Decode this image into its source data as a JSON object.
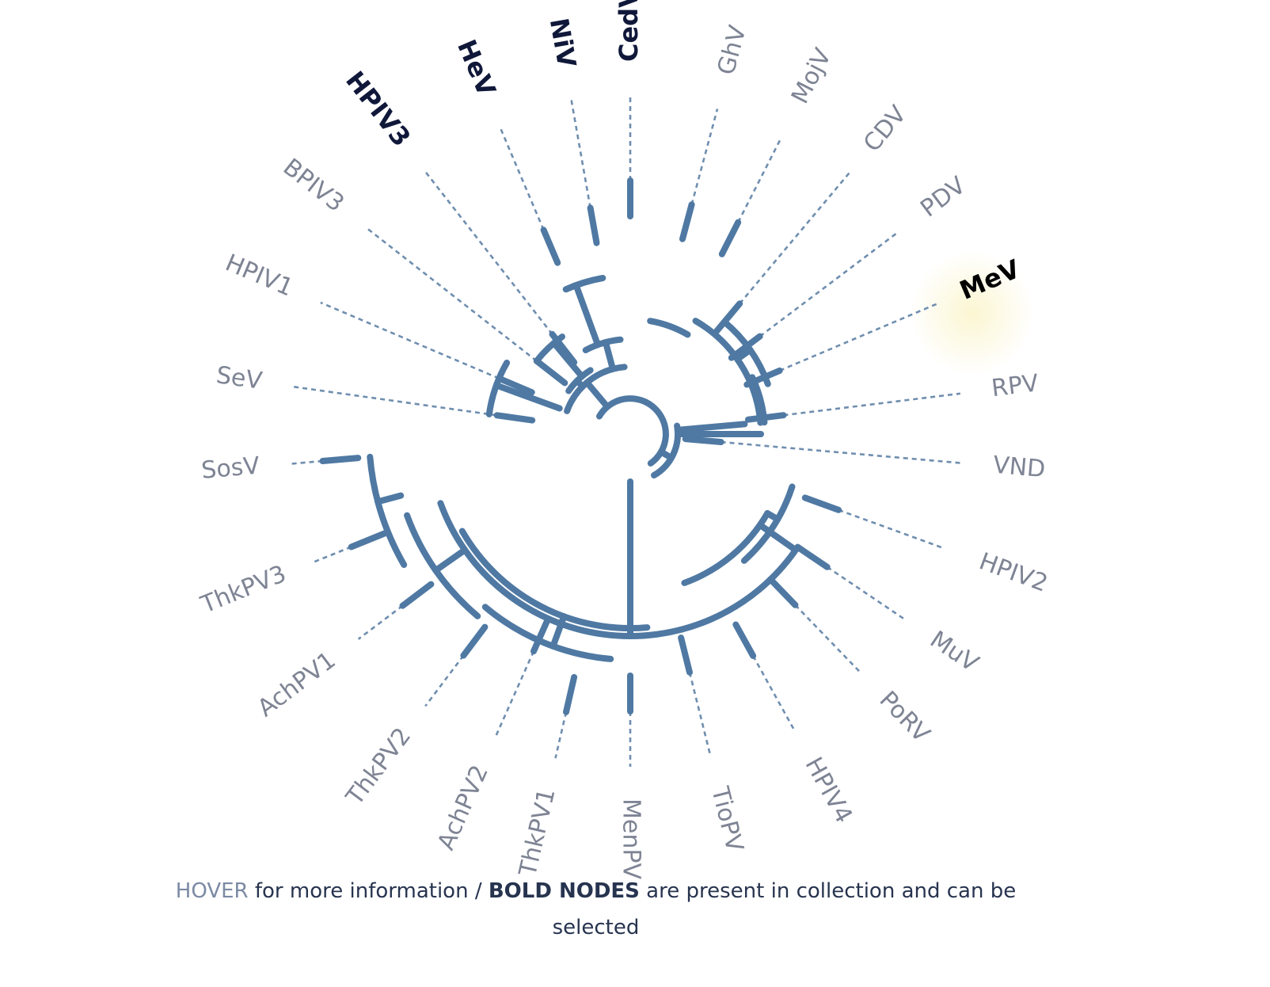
{
  "tree": {
    "accent": "#4f79a3",
    "leaves": [
      {
        "label": "CedV",
        "present": true
      },
      {
        "label": "GhV",
        "present": false
      },
      {
        "label": "MojV",
        "present": false
      },
      {
        "label": "CDV",
        "present": false
      },
      {
        "label": "PDV",
        "present": false
      },
      {
        "label": "MeV",
        "present": true,
        "active": true
      },
      {
        "label": "RPV",
        "present": false
      },
      {
        "label": "VND",
        "present": false
      },
      {
        "label": "HPIV2",
        "present": false
      },
      {
        "label": "MuV",
        "present": false
      },
      {
        "label": "PoRV",
        "present": false
      },
      {
        "label": "HPIV4",
        "present": false
      },
      {
        "label": "TioPV",
        "present": false
      },
      {
        "label": "MenPV",
        "present": false
      },
      {
        "label": "ThkPV1",
        "present": false
      },
      {
        "label": "AchPV2",
        "present": false
      },
      {
        "label": "ThkPV2",
        "present": false
      },
      {
        "label": "AchPV1",
        "present": false
      },
      {
        "label": "ThkPV3",
        "present": false
      },
      {
        "label": "SosV",
        "present": false
      },
      {
        "label": "SeV",
        "present": false
      },
      {
        "label": "HPIV1",
        "present": false
      },
      {
        "label": "BPIV3",
        "present": false
      },
      {
        "label": "HPIV3",
        "present": true
      },
      {
        "label": "HeV",
        "present": true
      },
      {
        "label": "NiV",
        "present": true
      }
    ]
  },
  "instructions": {
    "hover": "HOVER",
    "part1": " for more information / ",
    "bold": "BOLD NODES",
    "part2": " are present in collection and can be selected"
  }
}
